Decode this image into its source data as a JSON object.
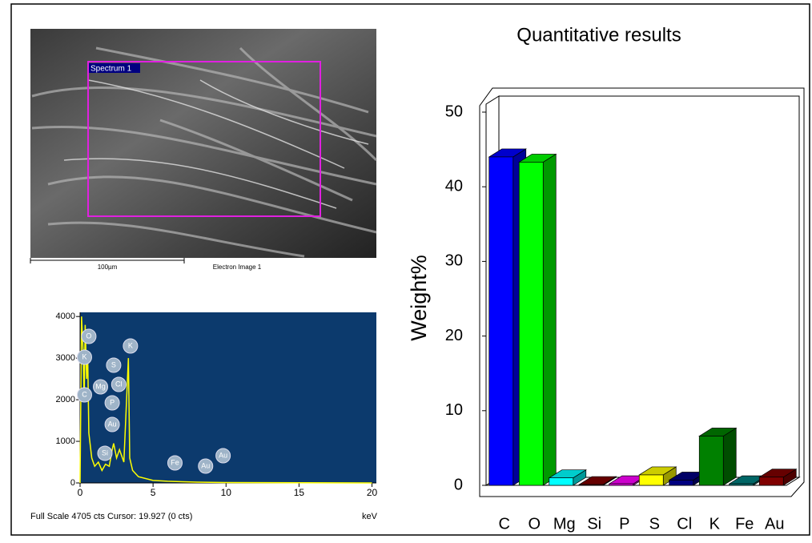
{
  "image": {
    "region_label": "Spectrum 1",
    "scale_label": "100µm",
    "caption": "Electron Image 1"
  },
  "chart_data": [
    {
      "type": "line",
      "x_unit": "keV",
      "footer": "Full Scale 4705 cts Cursor: 19.927 (0 cts)",
      "x": [
        0,
        0.1,
        0.2,
        0.28,
        0.35,
        0.45,
        0.52,
        0.6,
        0.8,
        1.0,
        1.25,
        1.5,
        1.74,
        2.0,
        2.2,
        2.3,
        2.5,
        2.7,
        3.0,
        3.31,
        3.4,
        3.6,
        4,
        5,
        6,
        7,
        8,
        10,
        15,
        20
      ],
      "series": [
        {
          "color": "#ffff00",
          "values": [
            0,
            4000,
            3200,
            2000,
            3800,
            2500,
            3100,
            1200,
            600,
            400,
            500,
            300,
            450,
            400,
            800,
            950,
            600,
            800,
            500,
            3000,
            600,
            300,
            150,
            60,
            40,
            30,
            20,
            10,
            5,
            0
          ]
        }
      ],
      "peak_labels": [
        "C",
        "O",
        "K",
        "Mg",
        "S",
        "Cl",
        "P",
        "Au",
        "Si",
        "K",
        "Fe",
        "Au",
        "Au"
      ],
      "xlim": [
        0,
        20.3
      ],
      "xticks": [
        0,
        5,
        10,
        15,
        20
      ],
      "ylim": [
        0,
        4100
      ],
      "yticks": [
        0,
        1000,
        2000,
        3000,
        4000
      ],
      "background": "#0c3a6d"
    },
    {
      "type": "bar3d",
      "title": "Quantitative results",
      "y_label": "Weight%",
      "categories": [
        "C",
        "O",
        "Mg",
        "Si",
        "P",
        "S",
        "Cl",
        "K",
        "Fe",
        "Au"
      ],
      "values": [
        44,
        43.3,
        1.0,
        0.1,
        0.2,
        1.4,
        0.7,
        6.6,
        0.2,
        1.1
      ],
      "colors": [
        "#0000ff",
        "#00ff00",
        "#00ffff",
        "#800000",
        "#ff00ff",
        "#ffff00",
        "#000080",
        "#008000",
        "#008080",
        "#800000"
      ],
      "ylim": [
        0,
        50
      ],
      "yticks": [
        0,
        10,
        20,
        30,
        40,
        50
      ]
    }
  ]
}
